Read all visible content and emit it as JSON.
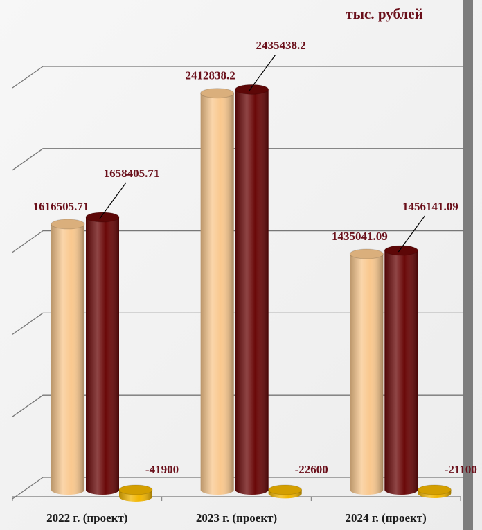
{
  "chart_data": {
    "type": "bar3d",
    "unit_label": "тыс. рублей",
    "categories": [
      "2022 г. (проект)",
      "2023 г. (проект)",
      "2024 г. (проект)"
    ],
    "series": [
      {
        "color": "#f9c88e",
        "values": [
          1616505.71,
          2412838.2,
          1435041.09
        ]
      },
      {
        "color": "#6a0808",
        "values": [
          1658405.71,
          2435438.2,
          1456141.09
        ]
      },
      {
        "color": "#f2b600",
        "values": [
          -41900,
          -22600,
          -21100
        ]
      }
    ],
    "ylim": [
      0,
      2500000
    ],
    "yticks": [
      0,
      500000,
      1000000,
      1500000,
      2000000,
      2500000
    ],
    "grid": true
  }
}
